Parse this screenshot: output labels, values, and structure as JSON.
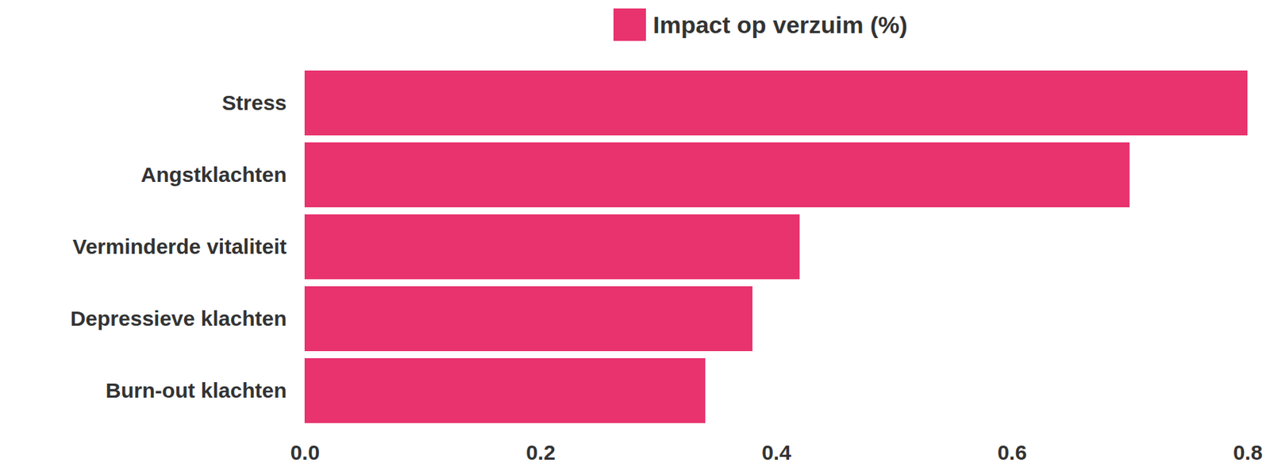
{
  "chart_data": {
    "type": "bar",
    "orientation": "horizontal",
    "categories": [
      "Stress",
      "Angstklachten",
      "Verminderde vitaliteit",
      "Depressieve klachten",
      "Burn-out klachten"
    ],
    "series": [
      {
        "name": "Impact op verzuim (%)",
        "color": "#e8336e",
        "values": [
          0.8,
          0.7,
          0.42,
          0.38,
          0.34
        ]
      }
    ],
    "xlim": [
      0,
      0.8
    ],
    "xticks": [
      {
        "value": 0,
        "label": "0.0"
      },
      0.2,
      0.4,
      0.6,
      0.8
    ],
    "grid": false,
    "legend": "top"
  }
}
